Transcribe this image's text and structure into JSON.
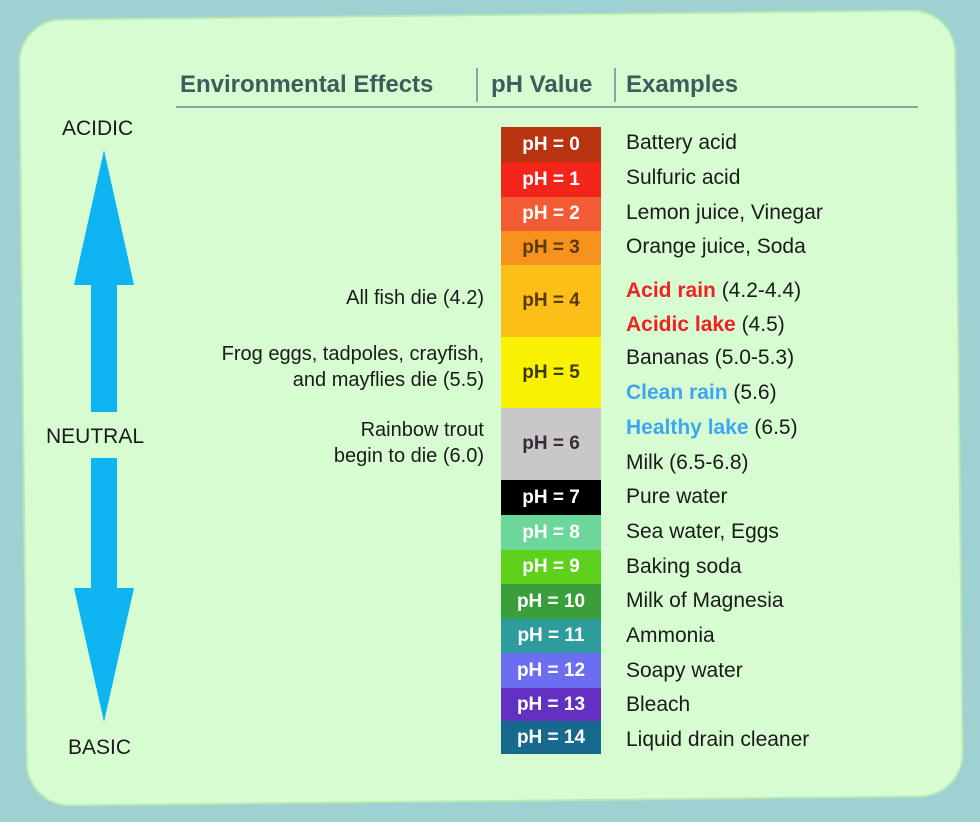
{
  "headers": {
    "effects": "Environmental Effects",
    "ph_value": "pH Value",
    "examples": "Examples"
  },
  "scale_labels": {
    "acidic": "ACIDIC",
    "neutral": "NEUTRAL",
    "basic": "BASIC"
  },
  "colors": {
    "arrow": "#0db4f1",
    "acid_highlight": "#ee2222",
    "clean_highlight": "#3ea6f0"
  },
  "ph_levels": [
    {
      "label": "pH = 0",
      "color": "#b8340f"
    },
    {
      "label": "pH = 1",
      "color": "#f3251a"
    },
    {
      "label": "pH = 2",
      "color": "#f25b34"
    },
    {
      "label": "pH = 3",
      "color": "#f7921f"
    },
    {
      "label": "pH = 4",
      "color": "#fbbf18"
    },
    {
      "label": "pH = 5",
      "color": "#f8f200"
    },
    {
      "label": "pH = 6",
      "color": "#c8c8c8"
    },
    {
      "label": "pH = 7",
      "color": "#000000"
    },
    {
      "label": "pH = 8",
      "color": "#6dd69a"
    },
    {
      "label": "pH = 9",
      "color": "#5ed11c"
    },
    {
      "label": "pH = 10",
      "color": "#3a9e3a"
    },
    {
      "label": "pH = 11",
      "color": "#2e9c9c"
    },
    {
      "label": "pH = 12",
      "color": "#6b6ef0"
    },
    {
      "label": "pH = 13",
      "color": "#6231c2"
    },
    {
      "label": "pH = 14",
      "color": "#176a8e"
    }
  ],
  "examples": [
    {
      "text": "Battery acid"
    },
    {
      "text": "Sulfuric acid"
    },
    {
      "text": "Lemon juice, Vinegar"
    },
    {
      "text": "Orange juice, Soda"
    },
    {
      "highlight": "Acid rain",
      "rest": " (4.2-4.4)",
      "hl_color": "#ee2222"
    },
    {
      "highlight": "Acidic lake",
      "rest": " (4.5)",
      "hl_color": "#ee2222"
    },
    {
      "text": "Bananas (5.0-5.3)"
    },
    {
      "highlight": "Clean rain",
      "rest": " (5.6)",
      "hl_color": "#3ea6f0"
    },
    {
      "highlight": "Healthy lake",
      "rest": " (6.5)",
      "hl_color": "#3ea6f0"
    },
    {
      "text": "Milk (6.5-6.8)"
    },
    {
      "text": "Pure water"
    },
    {
      "text": "Sea water, Eggs"
    },
    {
      "text": "Baking soda"
    },
    {
      "text": "Milk of Magnesia"
    },
    {
      "text": "Ammonia"
    },
    {
      "text": "Soapy water"
    },
    {
      "text": "Bleach"
    },
    {
      "text": "Liquid drain cleaner"
    }
  ],
  "effects": [
    {
      "line1": "All fish die (4.2)",
      "line2": ""
    },
    {
      "line1": "Frog eggs, tadpoles, crayfish,",
      "line2": "and mayflies die (5.5)"
    },
    {
      "line1": "Rainbow trout",
      "line2": "begin to die (6.0)"
    }
  ]
}
